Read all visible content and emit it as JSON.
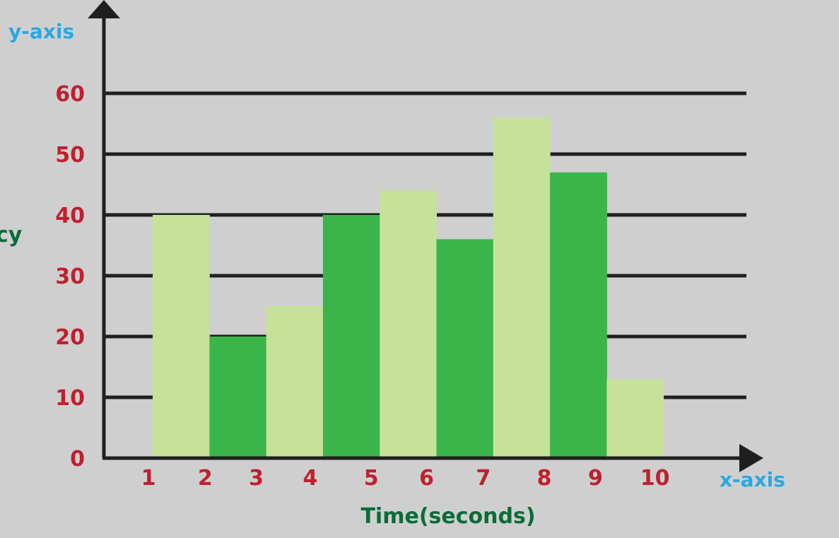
{
  "chart_data": {
    "type": "bar",
    "xlabel": "Time(seconds)",
    "ylabel": "cy",
    "x_axis_tag": "x-axis",
    "y_axis_tag": "y-axis",
    "x_ticks": [
      "1",
      "2",
      "3",
      "4",
      "5",
      "6",
      "7",
      "8",
      "9",
      "10"
    ],
    "y_ticks": [
      "0",
      "10",
      "20",
      "30",
      "40",
      "50",
      "60"
    ],
    "ylim": [
      0,
      60
    ],
    "bins": [
      [
        1,
        2
      ],
      [
        2,
        3
      ],
      [
        3,
        4
      ],
      [
        4,
        5
      ],
      [
        5,
        6
      ],
      [
        6,
        7
      ],
      [
        7,
        8
      ],
      [
        8,
        9
      ],
      [
        9,
        10
      ]
    ],
    "values": [
      40,
      20,
      25,
      40,
      44,
      36,
      56,
      47,
      13
    ],
    "grid": true,
    "colors": {
      "background": "#cfcfcf",
      "bar_light": "#c6e199",
      "bar_dark": "#3bb54a",
      "axis": "#1f1f1f",
      "tick_label": "#c0202f",
      "axis_tag": "#2aa8e0",
      "axis_title": "#0b6b3a"
    }
  }
}
